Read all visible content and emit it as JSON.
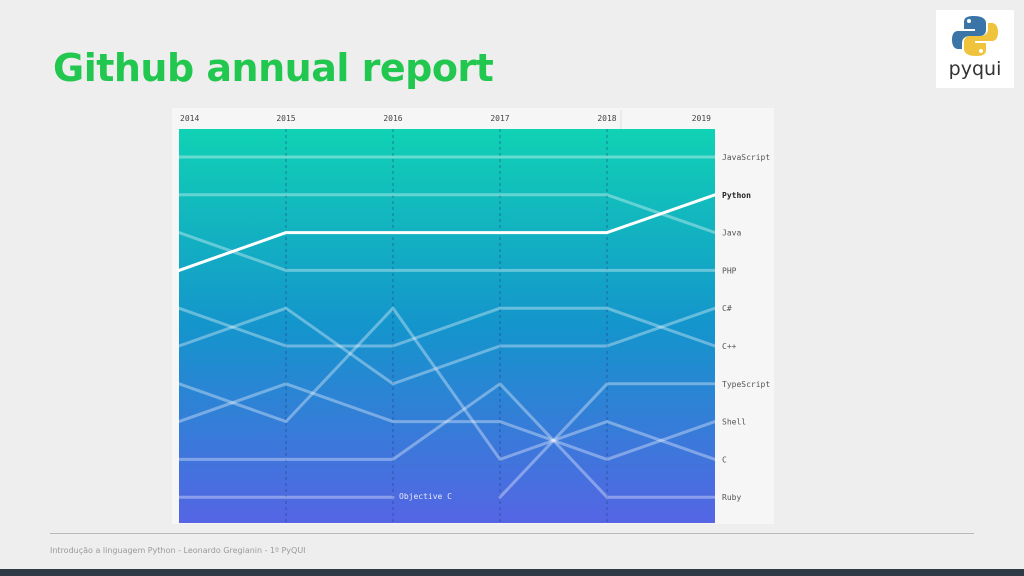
{
  "slide": {
    "title": "Github annual report",
    "footer": "Introdução a linguagem Python - Leonardo Gregianin - 1º PyQUI"
  },
  "logo": {
    "text": "pyqui",
    "icon": "python-logo-icon"
  },
  "colors": {
    "title": "#22c74f",
    "gradient_top": "#10d2b4",
    "gradient_bottom": "#5565e4",
    "highlight_line": "#ffffff"
  },
  "chart_data": {
    "type": "bump",
    "title": "",
    "x": [
      "2014",
      "2015",
      "2016",
      "2017",
      "2018",
      "2019"
    ],
    "rank_labels": [
      "JavaScript",
      "Python",
      "Java",
      "PHP",
      "C#",
      "C++",
      "TypeScript",
      "Shell",
      "C",
      "Ruby"
    ],
    "highlight": "Python",
    "series": [
      {
        "name": "JavaScript",
        "ranks": [
          1,
          1,
          1,
          1,
          1,
          1
        ]
      },
      {
        "name": "Python",
        "ranks": [
          4,
          3,
          3,
          3,
          3,
          2
        ]
      },
      {
        "name": "Java",
        "ranks": [
          2,
          2,
          2,
          2,
          2,
          3
        ]
      },
      {
        "name": "PHP",
        "ranks": [
          3,
          4,
          4,
          4,
          4,
          4
        ]
      },
      {
        "name": "C#",
        "ranks": [
          6,
          5,
          7,
          6,
          6,
          5
        ]
      },
      {
        "name": "C++",
        "ranks": [
          5,
          6,
          6,
          5,
          5,
          6
        ]
      },
      {
        "name": "TypeScript",
        "ranks": [
          null,
          null,
          null,
          10,
          7,
          7
        ]
      },
      {
        "name": "Shell",
        "ranks": [
          8,
          7,
          8,
          8,
          9,
          8
        ]
      },
      {
        "name": "C",
        "ranks": [
          7,
          8,
          5,
          9,
          8,
          9
        ]
      },
      {
        "name": "Ruby",
        "ranks": [
          9,
          9,
          9,
          7,
          10,
          10
        ]
      },
      {
        "name": "Objective C",
        "ranks": [
          10,
          10,
          10,
          null,
          null,
          null
        ]
      }
    ],
    "annotations": [
      {
        "text": "Objective C",
        "x": "2016",
        "rank": 10
      }
    ],
    "ylim": [
      1,
      10
    ],
    "grid": "dashed vertical lines at each year"
  }
}
